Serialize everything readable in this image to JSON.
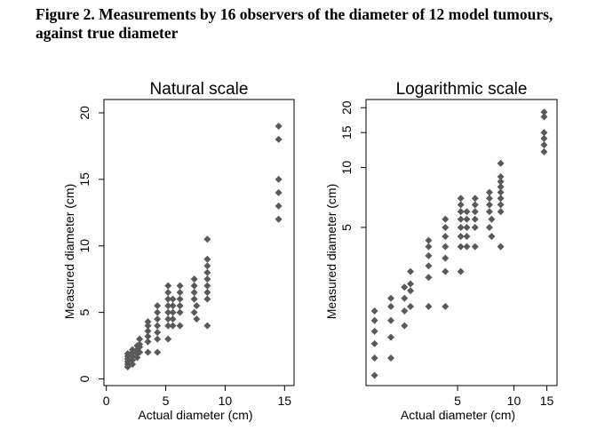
{
  "caption": {
    "line1": "Figure 2.  Measurements by 16 observers of the diameter of 12 model tumours,",
    "line2": "against true diameter"
  },
  "colors": {
    "marker": "#595959",
    "axis": "#000000",
    "frame": "#000000",
    "background": "#ffffff"
  },
  "chart_data": [
    {
      "type": "scatter",
      "title": "Natural scale",
      "xlabel": "Actual diameter (cm)",
      "ylabel": "Measured diameter (cm)",
      "xlim": [
        -0.2,
        15.8
      ],
      "ylim": [
        -0.5,
        21
      ],
      "xticks": [
        0,
        5,
        10,
        15
      ],
      "yticks": [
        0,
        5,
        10,
        15,
        20
      ],
      "xscale": "linear",
      "yscale": "linear",
      "grid": false,
      "series": [
        {
          "points": [
            [
              1.8,
              0.9
            ],
            [
              1.8,
              1.1
            ],
            [
              1.8,
              1.3
            ],
            [
              1.8,
              1.5
            ],
            [
              1.8,
              1.7
            ],
            [
              1.8,
              1.9
            ],
            [
              2.2,
              1.1
            ],
            [
              2.2,
              1.4
            ],
            [
              2.2,
              1.7
            ],
            [
              2.2,
              2.0
            ],
            [
              2.2,
              2.2
            ],
            [
              2.6,
              1.6
            ],
            [
              2.6,
              1.9
            ],
            [
              2.6,
              2.2
            ],
            [
              2.6,
              2.5
            ],
            [
              2.8,
              2.0
            ],
            [
              2.8,
              2.4
            ],
            [
              2.8,
              2.6
            ],
            [
              2.8,
              3.0
            ],
            [
              3.5,
              2.0
            ],
            [
              3.5,
              2.8
            ],
            [
              3.5,
              3.2
            ],
            [
              3.5,
              3.6
            ],
            [
              3.5,
              4.0
            ],
            [
              3.5,
              4.3
            ],
            [
              4.3,
              2.0
            ],
            [
              4.3,
              3.0
            ],
            [
              4.3,
              3.5
            ],
            [
              4.3,
              4.0
            ],
            [
              4.3,
              4.5
            ],
            [
              4.3,
              5.0
            ],
            [
              4.3,
              5.5
            ],
            [
              5.2,
              3.0
            ],
            [
              5.2,
              4.0
            ],
            [
              5.2,
              4.5
            ],
            [
              5.2,
              5.0
            ],
            [
              5.2,
              5.5
            ],
            [
              5.2,
              6.0
            ],
            [
              5.2,
              6.5
            ],
            [
              5.2,
              7.0
            ],
            [
              5.6,
              4.0
            ],
            [
              5.6,
              4.5
            ],
            [
              5.6,
              5.0
            ],
            [
              5.6,
              5.5
            ],
            [
              5.6,
              6.0
            ],
            [
              6.2,
              4.0
            ],
            [
              6.2,
              5.0
            ],
            [
              6.2,
              5.5
            ],
            [
              6.2,
              6.0
            ],
            [
              6.2,
              6.5
            ],
            [
              6.2,
              7.0
            ],
            [
              7.4,
              5.0
            ],
            [
              7.4,
              6.0
            ],
            [
              7.4,
              6.5
            ],
            [
              7.4,
              7.0
            ],
            [
              7.4,
              7.5
            ],
            [
              7.6,
              4.5
            ],
            [
              7.6,
              5.5
            ],
            [
              8.5,
              4.0
            ],
            [
              8.5,
              6.0
            ],
            [
              8.5,
              6.5
            ],
            [
              8.5,
              7.0
            ],
            [
              8.5,
              7.5
            ],
            [
              8.5,
              8.0
            ],
            [
              8.5,
              8.5
            ],
            [
              8.5,
              9.0
            ],
            [
              8.5,
              10.5
            ],
            [
              14.5,
              12.0
            ],
            [
              14.5,
              13.0
            ],
            [
              14.5,
              14.0
            ],
            [
              14.5,
              15.0
            ],
            [
              14.5,
              18.0
            ],
            [
              14.5,
              19.0
            ]
          ]
        }
      ]
    },
    {
      "type": "scatter",
      "title": "Logarithmic scale",
      "xlabel": "Actual diameter (cm)",
      "ylabel": "Measured diameter (cm)",
      "xlim": [
        1.62,
        17.0
      ],
      "ylim": [
        0.8,
        22
      ],
      "xticks": [
        5,
        10,
        15
      ],
      "yticks": [
        5,
        10,
        15,
        20
      ],
      "xscale": "log",
      "yscale": "log",
      "grid": false,
      "series": [
        {
          "points": [
            [
              1.8,
              0.9
            ],
            [
              1.8,
              1.1
            ],
            [
              1.8,
              1.3
            ],
            [
              1.8,
              1.5
            ],
            [
              1.8,
              1.7
            ],
            [
              1.8,
              1.9
            ],
            [
              2.2,
              1.1
            ],
            [
              2.2,
              1.4
            ],
            [
              2.2,
              1.7
            ],
            [
              2.2,
              2.0
            ],
            [
              2.2,
              2.2
            ],
            [
              2.6,
              1.6
            ],
            [
              2.6,
              1.9
            ],
            [
              2.6,
              2.2
            ],
            [
              2.6,
              2.5
            ],
            [
              2.8,
              2.0
            ],
            [
              2.8,
              2.4
            ],
            [
              2.8,
              2.6
            ],
            [
              2.8,
              3.0
            ],
            [
              3.5,
              2.0
            ],
            [
              3.5,
              2.8
            ],
            [
              3.5,
              3.2
            ],
            [
              3.5,
              3.6
            ],
            [
              3.5,
              4.0
            ],
            [
              3.5,
              4.3
            ],
            [
              4.3,
              2.0
            ],
            [
              4.3,
              3.0
            ],
            [
              4.3,
              3.5
            ],
            [
              4.3,
              4.0
            ],
            [
              4.3,
              4.5
            ],
            [
              4.3,
              5.0
            ],
            [
              4.3,
              5.5
            ],
            [
              5.2,
              3.0
            ],
            [
              5.2,
              4.0
            ],
            [
              5.2,
              4.5
            ],
            [
              5.2,
              5.0
            ],
            [
              5.2,
              5.5
            ],
            [
              5.2,
              6.0
            ],
            [
              5.2,
              6.5
            ],
            [
              5.2,
              7.0
            ],
            [
              5.6,
              4.0
            ],
            [
              5.6,
              4.5
            ],
            [
              5.6,
              5.0
            ],
            [
              5.6,
              5.5
            ],
            [
              5.6,
              6.0
            ],
            [
              6.2,
              4.0
            ],
            [
              6.2,
              5.0
            ],
            [
              6.2,
              5.5
            ],
            [
              6.2,
              6.0
            ],
            [
              6.2,
              6.5
            ],
            [
              6.2,
              7.0
            ],
            [
              7.4,
              5.0
            ],
            [
              7.4,
              6.0
            ],
            [
              7.4,
              6.5
            ],
            [
              7.4,
              7.0
            ],
            [
              7.4,
              7.5
            ],
            [
              7.6,
              4.5
            ],
            [
              7.6,
              5.5
            ],
            [
              8.5,
              4.0
            ],
            [
              8.5,
              6.0
            ],
            [
              8.5,
              6.5
            ],
            [
              8.5,
              7.0
            ],
            [
              8.5,
              7.5
            ],
            [
              8.5,
              8.0
            ],
            [
              8.5,
              8.5
            ],
            [
              8.5,
              9.0
            ],
            [
              8.5,
              10.5
            ],
            [
              14.5,
              12.0
            ],
            [
              14.5,
              13.0
            ],
            [
              14.5,
              14.0
            ],
            [
              14.5,
              15.0
            ],
            [
              14.5,
              18.0
            ],
            [
              14.5,
              19.0
            ]
          ]
        }
      ]
    }
  ]
}
